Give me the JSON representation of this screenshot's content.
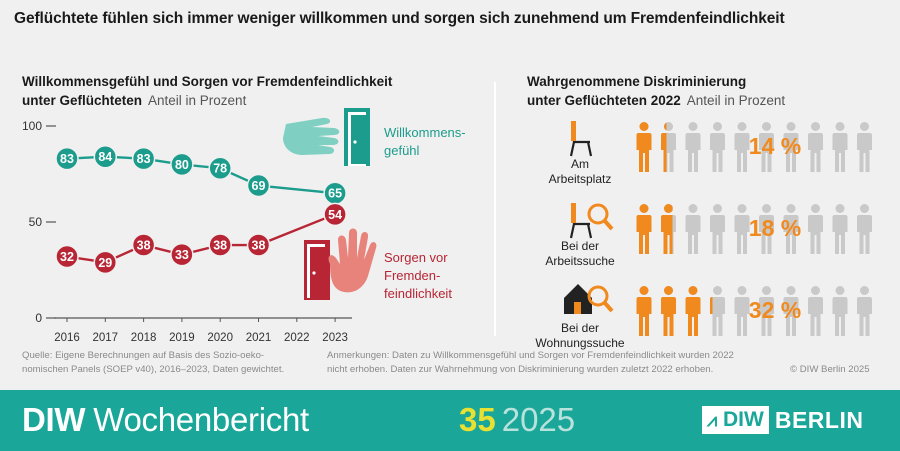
{
  "title": "Geflüchtete fühlen sich immer weniger willkommen und sorgen sich zunehmend um Fremdenfeindlichkeit",
  "left_panel": {
    "title_line1": "Willkommensgefühl und Sorgen vor Fremdenfeindlichkeit",
    "title_line2": "unter Geflüchteten",
    "unit": "Anteil in Prozent",
    "label_welcome_1": "Willkommens-",
    "label_welcome_2": "gefühl",
    "label_worry_1": "Sorgen vor",
    "label_worry_2": "Fremden-",
    "label_worry_3": "feindlichkeit"
  },
  "right_panel": {
    "title_line1": "Wahrgenommene Diskriminierung",
    "title_line2": "unter Geflüchteten 2022",
    "unit": "Anteil in Prozent",
    "rows": [
      {
        "label": [
          "Am",
          "Arbeitsplatz"
        ],
        "percent": "14 %",
        "value": 14,
        "icon": "chair-icon"
      },
      {
        "label": [
          "Bei der",
          "Arbeitssuche"
        ],
        "percent": "18 %",
        "value": 18,
        "icon": "chair-search-icon"
      },
      {
        "label": [
          "Bei der",
          "Wohnungssuche"
        ],
        "percent": "32 %",
        "value": 32,
        "icon": "house-search-icon"
      }
    ]
  },
  "colors": {
    "welcome": "#1c9c8c",
    "worry": "#b82535",
    "orange": "#f08a1f",
    "grey_person": "#c9c9c9",
    "footer": "#1aa699"
  },
  "chart_data": [
    {
      "type": "line",
      "x": [
        "2016",
        "2017",
        "2018",
        "2019",
        "2020",
        "2021",
        "2022",
        "2023"
      ],
      "ylim": [
        0,
        100
      ],
      "yticks": [
        "0",
        "50",
        "100"
      ],
      "series": [
        {
          "name": "Willkommensgefühl",
          "values": [
            83,
            84,
            83,
            80,
            78,
            69,
            null,
            65
          ]
        },
        {
          "name": "Sorgen vor Fremdenfeindlichkeit",
          "values": [
            32,
            29,
            38,
            33,
            38,
            38,
            null,
            54
          ]
        }
      ]
    },
    {
      "type": "bar",
      "categories": [
        "Am Arbeitsplatz",
        "Bei der Arbeitssuche",
        "Bei der Wohnungssuche"
      ],
      "values": [
        14,
        18,
        32
      ],
      "ylim": [
        0,
        100
      ]
    }
  ],
  "footnotes": {
    "source_1": "Quelle: Eigene Berechnungen auf Basis des Sozio-oeko-",
    "source_2": "nomischen Panels (SOEP v40), 2016–2023, Daten gewichtet.",
    "remarks_1": "Anmerkungen: Daten zu Willkommensgefühl und Sorgen vor Fremdenfeindlichkeit wurden 2022",
    "remarks_2": "nicht erhoben. Daten zur Wahrnehmung von Diskriminierung wurden zuletzt 2022 erhoben.",
    "copyright": "© DIW Berlin 2025"
  },
  "footer": {
    "brand_bold": "DIW",
    "brand_rest": "Wochenbericht",
    "issue_num": "35",
    "issue_year": "2025",
    "logo_text": "DIW",
    "logo_city": "BERLIN"
  }
}
